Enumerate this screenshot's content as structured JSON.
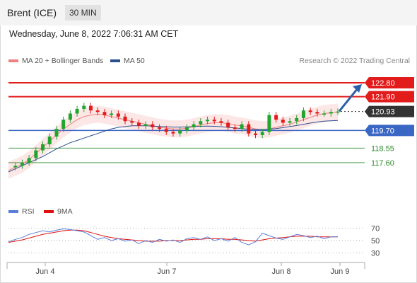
{
  "header": {
    "instrument": "Brent (ICE)",
    "timeframe": "30 MIN",
    "datetime": "Wednesday, June 8, 2022 7:06:31 AM CET",
    "credit": "Research © 2022 Trading Central"
  },
  "legend": {
    "main": [
      {
        "label": "MA 20 + Bollinger Bands",
        "color": "#f08080"
      },
      {
        "label": "MA 50",
        "color": "#2a4f8f"
      }
    ],
    "rsi": [
      {
        "label": "RSI",
        "color": "#5b7fd6"
      },
      {
        "label": "9MA",
        "color": "#e01010"
      }
    ]
  },
  "colors": {
    "up": "#22a52f",
    "down": "#e21b1b",
    "resistance": "#e21b1b",
    "pivot": "#3a66c4",
    "support": "#2e8b2e",
    "current": "#333333",
    "arrow": "#2e5ea8",
    "band": "#fcdede"
  },
  "chart_data": [
    {
      "type": "line",
      "title": "Brent (ICE) 30 MIN",
      "ylim": [
        116.4,
        123.4
      ],
      "x_ticks": [
        "Jun 4",
        "Jun 7",
        "Jun 8",
        "Jun 9"
      ],
      "levels": [
        {
          "value": 122.8,
          "label": "122.80",
          "kind": "resistance"
        },
        {
          "value": 121.9,
          "label": "121.90",
          "kind": "resistance"
        },
        {
          "value": 120.93,
          "label": "120.93",
          "kind": "current"
        },
        {
          "value": 119.7,
          "label": "119.70",
          "kind": "pivot"
        },
        {
          "value": 118.55,
          "label": "118.55",
          "kind": "support"
        },
        {
          "value": 117.6,
          "label": "117.60",
          "kind": "support"
        }
      ],
      "target_arrow": {
        "from": 120.95,
        "to": 122.8
      },
      "series": [
        {
          "name": "Close",
          "values": [
            117.3,
            117.4,
            117.6,
            117.9,
            118.4,
            118.8,
            119.3,
            119.8,
            120.4,
            120.8,
            121.1,
            121.3,
            121.0,
            120.9,
            120.7,
            120.8,
            120.6,
            120.3,
            120.2,
            120.0,
            120.1,
            119.9,
            119.8,
            119.6,
            119.5,
            119.7,
            119.9,
            120.1,
            120.3,
            120.4,
            120.3,
            120.2,
            119.9,
            119.8,
            120.1,
            119.5,
            119.4,
            119.6,
            120.7,
            120.4,
            120.2,
            120.3,
            120.5,
            121.0,
            120.9,
            120.8,
            120.8,
            120.9,
            120.93
          ]
        },
        {
          "name": "MA 20",
          "values": [
            117.1,
            117.3,
            117.5,
            117.8,
            118.2,
            118.6,
            119.0,
            119.4,
            119.8,
            120.1,
            120.4,
            120.6,
            120.7,
            120.75,
            120.7,
            120.6,
            120.5,
            120.4,
            120.3,
            120.2,
            120.1,
            120.0,
            119.9,
            119.85,
            119.8,
            119.8,
            119.85,
            119.95,
            120.05,
            120.15,
            120.2,
            120.2,
            120.15,
            120.05,
            120.0,
            119.9,
            119.8,
            119.75,
            119.8,
            119.9,
            120.0,
            120.1,
            120.25,
            120.4,
            120.55,
            120.7,
            120.8,
            120.85,
            120.9
          ]
        },
        {
          "name": "MA 50",
          "values": [
            117.0,
            117.2,
            117.4,
            117.6,
            117.8,
            118.0,
            118.25,
            118.5,
            118.7,
            118.9,
            119.05,
            119.2,
            119.35,
            119.5,
            119.65,
            119.8,
            119.9,
            119.95,
            120.0,
            120.0,
            120.0,
            119.98,
            119.96,
            119.94,
            119.92,
            119.92,
            119.93,
            119.95,
            119.97,
            119.98,
            119.97,
            119.94,
            119.9,
            119.86,
            119.82,
            119.78,
            119.76,
            119.76,
            119.78,
            119.82,
            119.88,
            119.95,
            120.02,
            120.1,
            120.18,
            120.25,
            120.3,
            120.33,
            120.35
          ]
        }
      ]
    },
    {
      "type": "line",
      "title": "RSI",
      "ylim": [
        20,
        80
      ],
      "y_ticks": [
        70,
        50,
        30
      ],
      "series": [
        {
          "name": "RSI",
          "values": [
            48,
            52,
            55,
            60,
            63,
            66,
            64,
            67,
            69,
            68,
            66,
            64,
            58,
            52,
            55,
            50,
            53,
            49,
            51,
            45,
            50,
            47,
            52,
            49,
            51,
            47,
            53,
            55,
            52,
            56,
            50,
            53,
            49,
            55,
            47,
            43,
            48,
            62,
            58,
            54,
            52,
            56,
            60,
            58,
            55,
            57,
            53,
            56,
            56
          ]
        },
        {
          "name": "9MA",
          "values": [
            47,
            49,
            51,
            54,
            57,
            60,
            62,
            64,
            66,
            67,
            67,
            66,
            63,
            60,
            57,
            55,
            53,
            52,
            51,
            50,
            49,
            49,
            49,
            50,
            50,
            50,
            51,
            52,
            52,
            53,
            53,
            53,
            52,
            52,
            51,
            50,
            49,
            51,
            53,
            54,
            55,
            56,
            57,
            57,
            57,
            56,
            56,
            56,
            56
          ]
        }
      ]
    }
  ]
}
